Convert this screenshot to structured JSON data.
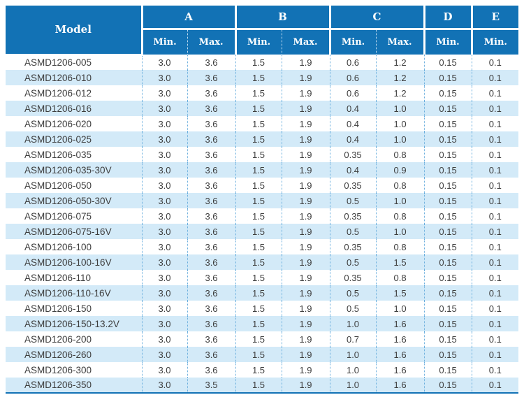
{
  "colors": {
    "header_bg": "#1272b5",
    "stripe_bg": "#d3eaf8",
    "dotted_line": "#6aaedd",
    "body_text": "#3d3d3d",
    "header_text": "#ffffff"
  },
  "table": {
    "header": {
      "model_label": "Model",
      "groups": [
        {
          "label": "A",
          "subs": [
            "Min.",
            "Max."
          ]
        },
        {
          "label": "B",
          "subs": [
            "Min.",
            "Max."
          ]
        },
        {
          "label": "C",
          "subs": [
            "Min.",
            "Max."
          ]
        },
        {
          "label": "D",
          "subs": [
            "Min."
          ]
        },
        {
          "label": "E",
          "subs": [
            "Min."
          ]
        }
      ]
    },
    "rows": [
      {
        "model": "ASMD1206-005",
        "values": [
          "3.0",
          "3.6",
          "1.5",
          "1.9",
          "0.6",
          "1.2",
          "0.15",
          "0.1"
        ]
      },
      {
        "model": "ASMD1206-010",
        "values": [
          "3.0",
          "3.6",
          "1.5",
          "1.9",
          "0.6",
          "1.2",
          "0.15",
          "0.1"
        ]
      },
      {
        "model": "ASMD1206-012",
        "values": [
          "3.0",
          "3.6",
          "1.5",
          "1.9",
          "0.6",
          "1.2",
          "0.15",
          "0.1"
        ]
      },
      {
        "model": "ASMD1206-016",
        "values": [
          "3.0",
          "3.6",
          "1.5",
          "1.9",
          "0.4",
          "1.0",
          "0.15",
          "0.1"
        ]
      },
      {
        "model": "ASMD1206-020",
        "values": [
          "3.0",
          "3.6",
          "1.5",
          "1.9",
          "0.4",
          "1.0",
          "0.15",
          "0.1"
        ]
      },
      {
        "model": "ASMD1206-025",
        "values": [
          "3.0",
          "3.6",
          "1.5",
          "1.9",
          "0.4",
          "1.0",
          "0.15",
          "0.1"
        ]
      },
      {
        "model": "ASMD1206-035",
        "values": [
          "3.0",
          "3.6",
          "1.5",
          "1.9",
          "0.35",
          "0.8",
          "0.15",
          "0.1"
        ]
      },
      {
        "model": "ASMD1206-035-30V",
        "values": [
          "3.0",
          "3.6",
          "1.5",
          "1.9",
          "0.4",
          "0.9",
          "0.15",
          "0.1"
        ]
      },
      {
        "model": "ASMD1206-050",
        "values": [
          "3.0",
          "3.6",
          "1.5",
          "1.9",
          "0.35",
          "0.8",
          "0.15",
          "0.1"
        ]
      },
      {
        "model": "ASMD1206-050-30V",
        "values": [
          "3.0",
          "3.6",
          "1.5",
          "1.9",
          "0.5",
          "1.0",
          "0.15",
          "0.1"
        ]
      },
      {
        "model": "ASMD1206-075",
        "values": [
          "3.0",
          "3.6",
          "1.5",
          "1.9",
          "0.35",
          "0.8",
          "0.15",
          "0.1"
        ]
      },
      {
        "model": "ASMD1206-075-16V",
        "values": [
          "3.0",
          "3.6",
          "1.5",
          "1.9",
          "0.5",
          "1.0",
          "0.15",
          "0.1"
        ]
      },
      {
        "model": "ASMD1206-100",
        "values": [
          "3.0",
          "3.6",
          "1.5",
          "1.9",
          "0.35",
          "0.8",
          "0.15",
          "0.1"
        ]
      },
      {
        "model": "ASMD1206-100-16V",
        "values": [
          "3.0",
          "3.6",
          "1.5",
          "1.9",
          "0.5",
          "1.5",
          "0.15",
          "0.1"
        ]
      },
      {
        "model": "ASMD1206-110",
        "values": [
          "3.0",
          "3.6",
          "1.5",
          "1.9",
          "0.35",
          "0.8",
          "0.15",
          "0.1"
        ]
      },
      {
        "model": "ASMD1206-110-16V",
        "values": [
          "3.0",
          "3.6",
          "1.5",
          "1.9",
          "0.5",
          "1.5",
          "0.15",
          "0.1"
        ]
      },
      {
        "model": "ASMD1206-150",
        "values": [
          "3.0",
          "3.6",
          "1.5",
          "1.9",
          "0.5",
          "1.0",
          "0.15",
          "0.1"
        ]
      },
      {
        "model": "ASMD1206-150-13.2V",
        "values": [
          "3.0",
          "3.6",
          "1.5",
          "1.9",
          "1.0",
          "1.6",
          "0.15",
          "0.1"
        ]
      },
      {
        "model": "ASMD1206-200",
        "values": [
          "3.0",
          "3.6",
          "1.5",
          "1.9",
          "0.7",
          "1.6",
          "0.15",
          "0.1"
        ]
      },
      {
        "model": "ASMD1206-260",
        "values": [
          "3.0",
          "3.6",
          "1.5",
          "1.9",
          "1.0",
          "1.6",
          "0.15",
          "0.1"
        ]
      },
      {
        "model": "ASMD1206-300",
        "values": [
          "3.0",
          "3.6",
          "1.5",
          "1.9",
          "1.0",
          "1.6",
          "0.15",
          "0.1"
        ]
      },
      {
        "model": "ASMD1206-350",
        "values": [
          "3.0",
          "3.5",
          "1.5",
          "1.9",
          "1.0",
          "1.6",
          "0.15",
          "0.1"
        ]
      }
    ]
  }
}
